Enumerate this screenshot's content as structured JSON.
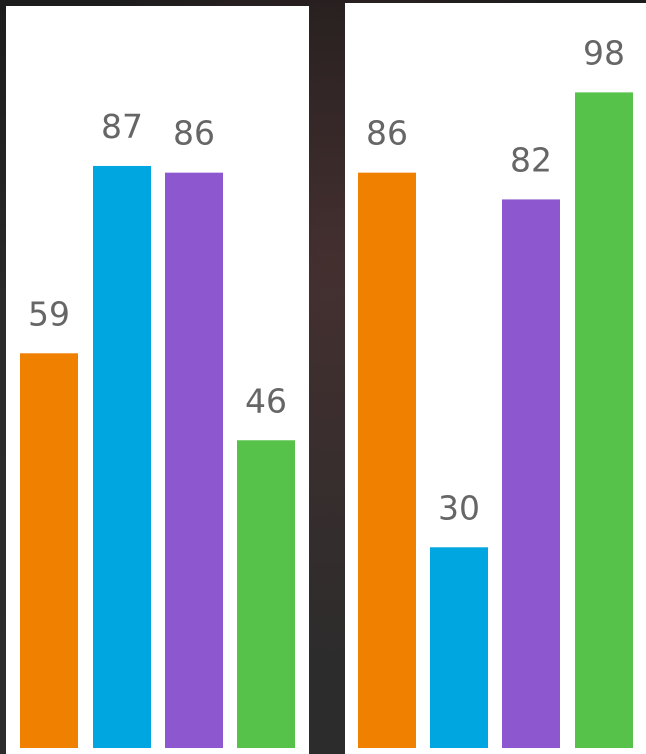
{
  "chart_data": [
    {
      "type": "bar",
      "categories": [
        "",
        "",
        "",
        ""
      ],
      "values": [
        59,
        87,
        86,
        46
      ],
      "colors": [
        "#f08000",
        "#00a6df",
        "#8c57cf",
        "#57c24a"
      ],
      "ylim": [
        0,
        100
      ],
      "grid": false,
      "title": "",
      "xlabel": "",
      "ylabel": ""
    },
    {
      "type": "bar",
      "categories": [
        "",
        "",
        "",
        ""
      ],
      "values": [
        86,
        30,
        82,
        98
      ],
      "colors": [
        "#f08000",
        "#00a6df",
        "#8c57cf",
        "#57c24a"
      ],
      "ylim": [
        0,
        100
      ],
      "grid": false,
      "title": "",
      "xlabel": "",
      "ylabel": ""
    }
  ]
}
